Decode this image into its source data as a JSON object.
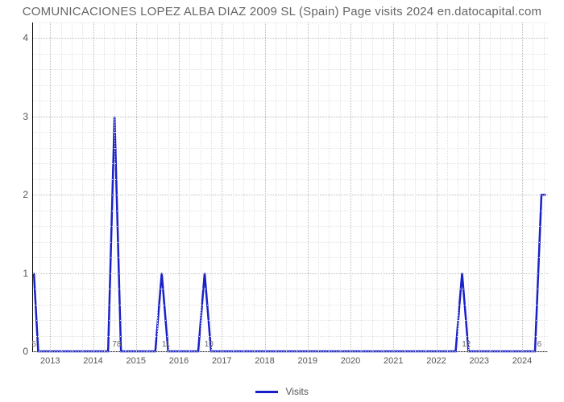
{
  "chart": {
    "type": "line",
    "title": "COMUNICACIONES LOPEZ ALBA DIAZ 2009 SL (Spain) Page visits 2024 en.datocapital.com",
    "title_fontsize": 15,
    "title_color": "#666666",
    "background_color": "#ffffff",
    "series_color": "#1820c8",
    "series_line_width": 2.5,
    "axis_color": "#000000",
    "grid_major_color": "#bbbbbb",
    "grid_minor_color": "#e2e2e2",
    "y": {
      "min": 0,
      "max": 4.2,
      "ticks": [
        0,
        1,
        2,
        3,
        4
      ],
      "minor_step": 0.2,
      "label_fontsize": 12,
      "label_color": "#555555"
    },
    "x": {
      "min": 2012.6,
      "max": 2024.6,
      "ticks": [
        2013,
        2014,
        2015,
        2016,
        2017,
        2018,
        2019,
        2020,
        2021,
        2022,
        2023,
        2024
      ],
      "minor_step": 0.25,
      "label_fontsize": 11,
      "label_color": "#555555"
    },
    "value_labels": [
      {
        "x": 2012.62,
        "text": "5"
      },
      {
        "x": 2014.55,
        "text": "78"
      },
      {
        "x": 2015.7,
        "text": "11"
      },
      {
        "x": 2016.7,
        "text": "10"
      },
      {
        "x": 2022.7,
        "text": "12"
      },
      {
        "x": 2024.4,
        "text": "6"
      }
    ],
    "legend": {
      "label": "Visits",
      "swatch_color": "#1820c8",
      "fontsize": 12,
      "color": "#555555"
    },
    "data": [
      {
        "x": 2012.62,
        "y": 1.0
      },
      {
        "x": 2012.72,
        "y": 0.0
      },
      {
        "x": 2014.35,
        "y": 0.0
      },
      {
        "x": 2014.5,
        "y": 3.0
      },
      {
        "x": 2014.65,
        "y": 0.0
      },
      {
        "x": 2015.45,
        "y": 0.0
      },
      {
        "x": 2015.6,
        "y": 1.0
      },
      {
        "x": 2015.75,
        "y": 0.0
      },
      {
        "x": 2016.45,
        "y": 0.0
      },
      {
        "x": 2016.6,
        "y": 1.0
      },
      {
        "x": 2016.75,
        "y": 0.0
      },
      {
        "x": 2022.45,
        "y": 0.0
      },
      {
        "x": 2022.6,
        "y": 1.0
      },
      {
        "x": 2022.75,
        "y": 0.0
      },
      {
        "x": 2024.3,
        "y": 0.0
      },
      {
        "x": 2024.45,
        "y": 2.0
      },
      {
        "x": 2024.55,
        "y": 2.0
      }
    ]
  }
}
